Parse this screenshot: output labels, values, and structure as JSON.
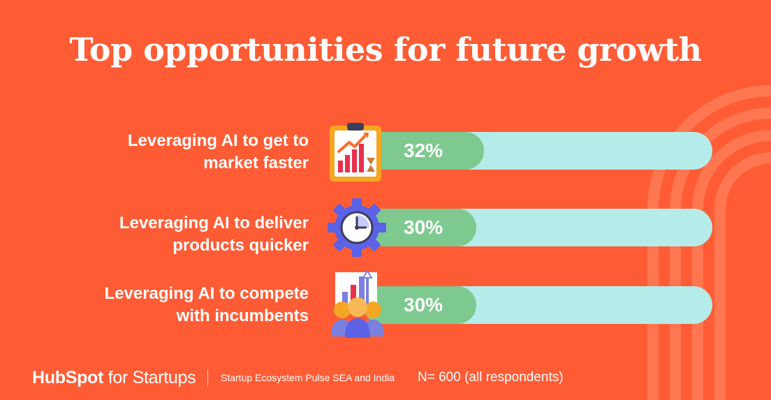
{
  "title": "Top opportunities for future growth",
  "chart_data": {
    "type": "bar",
    "orientation": "horizontal",
    "categories": [
      "Leveraging AI to get to market faster",
      "Leveraging AI to deliver products quicker",
      "Leveraging AI to compete with incumbents"
    ],
    "values": [
      32,
      30,
      30
    ],
    "value_labels": [
      "32%",
      "30%",
      "30%"
    ],
    "unit": "%",
    "xlim": [
      0,
      100
    ]
  },
  "rows": [
    {
      "label_line1": "Leveraging AI to get to",
      "label_line2": "market faster",
      "pct": "32%",
      "icon": "clipboard-growth-chart-icon"
    },
    {
      "label_line1": "Leveraging AI to deliver",
      "label_line2": "products quicker",
      "pct": "30%",
      "icon": "gear-clock-icon"
    },
    {
      "label_line1": "Leveraging AI to compete",
      "label_line2": "with incumbents",
      "pct": "30%",
      "icon": "team-growth-chart-icon"
    }
  ],
  "footer": {
    "logo_hub": "HubSpot",
    "logo_rest": " for Startups",
    "source": "Startup Ecosystem Pulse SEA and India",
    "sample": "N= 600 (all respondents)"
  },
  "colors": {
    "background": "#ff5c35",
    "track": "#b5ecea",
    "fill": "#7ec98f",
    "text": "#ffffff"
  }
}
